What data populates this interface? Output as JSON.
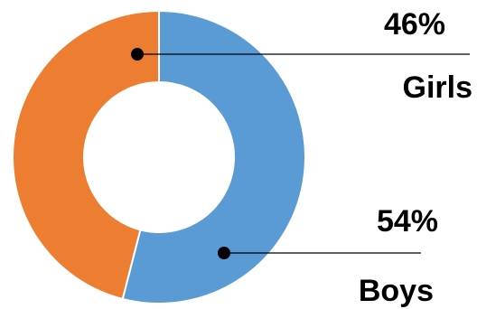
{
  "chart_data": {
    "type": "pie",
    "variant": "donut",
    "slices": [
      {
        "label": "Boys",
        "value": 54,
        "display": "54%",
        "color": "#5b9bd5"
      },
      {
        "label": "Girls",
        "value": 46,
        "display": "46%",
        "color": "#ed7d31"
      }
    ],
    "start": "top",
    "direction": "clockwise",
    "legend": "none",
    "labels": "outside-right"
  }
}
